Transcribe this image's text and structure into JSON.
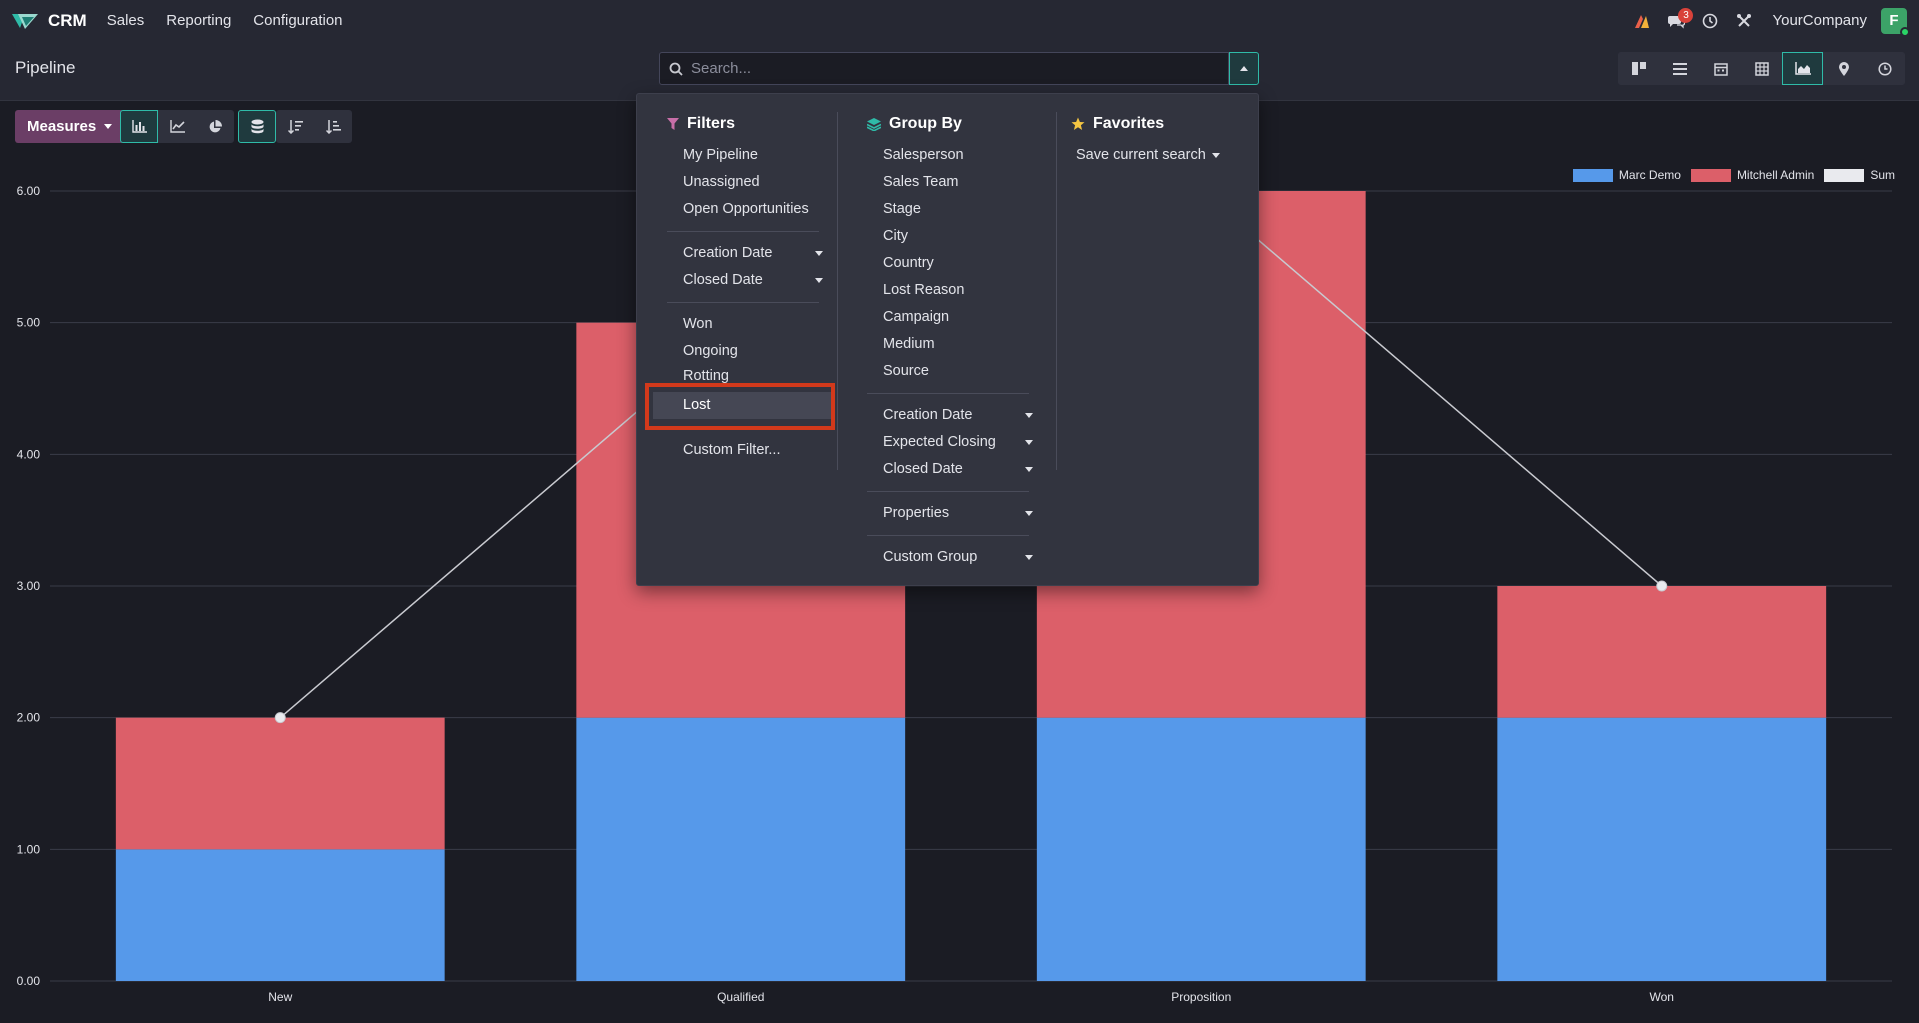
{
  "navbar": {
    "app_name": "CRM",
    "menus": [
      "Sales",
      "Reporting",
      "Configuration"
    ],
    "notification_count": "3",
    "company": "YourCompany",
    "avatar_letter": "F"
  },
  "control_panel": {
    "title": "Pipeline",
    "search_placeholder": "Search..."
  },
  "toolbar": {
    "measures_label": "Measures"
  },
  "dropdown": {
    "filters_title": "Filters",
    "filters_group1": [
      "My Pipeline",
      "Unassigned",
      "Open Opportunities"
    ],
    "filters_group2": [
      "Creation Date",
      "Closed Date"
    ],
    "filters_group3": [
      "Won",
      "Ongoing",
      "Rotting"
    ],
    "filters_lost": "Lost",
    "filters_custom": "Custom Filter...",
    "groupby_title": "Group By",
    "groupby_group1": [
      "Salesperson",
      "Sales Team",
      "Stage",
      "City",
      "Country",
      "Lost Reason",
      "Campaign",
      "Medium",
      "Source"
    ],
    "groupby_group2": [
      "Creation Date",
      "Expected Closing",
      "Closed Date"
    ],
    "groupby_properties": "Properties",
    "groupby_custom": "Custom Group",
    "favorites_title": "Favorites",
    "favorites_save": "Save current search"
  },
  "colors": {
    "marc": "#5699ea",
    "mitchell": "#dc5f69",
    "sum": "#e9eaee",
    "accent": "#2fbba8"
  },
  "chart_data": {
    "type": "bar",
    "stacked": true,
    "categories": [
      "New",
      "Qualified",
      "Proposition",
      "Won"
    ],
    "series": [
      {
        "name": "Marc Demo",
        "values": [
          1,
          2,
          2,
          2
        ]
      },
      {
        "name": "Mitchell Admin",
        "values": [
          1,
          3,
          4,
          1
        ]
      },
      {
        "name": "Sum",
        "values": [
          2,
          5,
          6,
          3
        ],
        "type": "line"
      }
    ],
    "yticks": [
      "0.00",
      "1.00",
      "2.00",
      "3.00",
      "4.00",
      "5.00",
      "6.00"
    ],
    "ylim": [
      0,
      6
    ],
    "grid": true,
    "legend": "top-right"
  }
}
